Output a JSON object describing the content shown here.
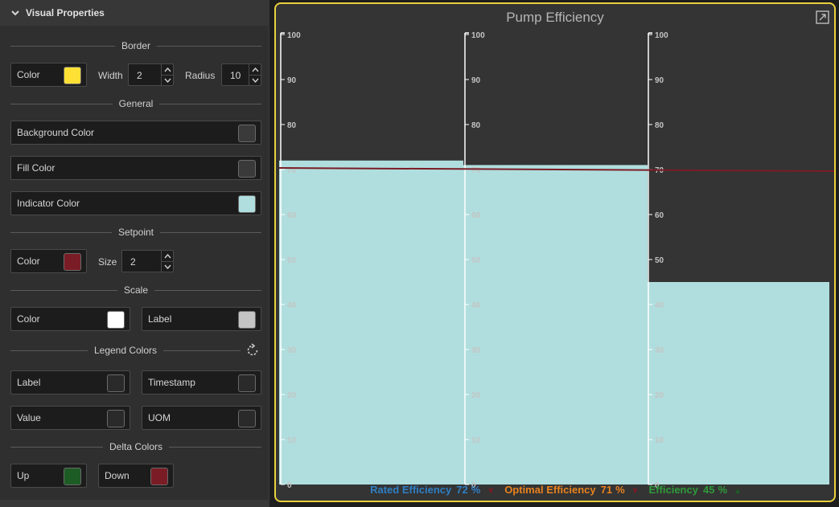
{
  "panel": {
    "header": "Visual Properties",
    "border": {
      "section": "Border",
      "color_label": "Color",
      "color": "#ffe135",
      "width_label": "Width",
      "width_value": "2",
      "radius_label": "Radius",
      "radius_value": "10"
    },
    "general": {
      "section": "General",
      "background_label": "Background Color",
      "background": "#3a3a3a",
      "fill_label": "Fill Color",
      "fill": "#3a3a3a",
      "indicator_label": "Indicator Color",
      "indicator": "#b0dede"
    },
    "setpoint": {
      "section": "Setpoint",
      "color_label": "Color",
      "color": "#7a1c25",
      "size_label": "Size",
      "size_value": "2"
    },
    "scale": {
      "section": "Scale",
      "color_label": "Color",
      "color": "#ffffff",
      "label_label": "Label",
      "label_color": "#c4c4c4"
    },
    "legend_colors": {
      "section": "Legend Colors",
      "label_label": "Label",
      "label_color": "#2a2a2a",
      "timestamp_label": "Timestamp",
      "timestamp_color": "#2a2a2a",
      "value_label": "Value",
      "value_color": "#2a2a2a",
      "uom_label": "UOM",
      "uom_color": "#2a2a2a"
    },
    "delta_colors": {
      "section": "Delta Colors",
      "up_label": "Up",
      "up_color": "#1d5c25",
      "down_label": "Down",
      "down_color": "#7a1c25"
    }
  },
  "chart": {
    "title": "Pump Efficiency"
  },
  "chart_data": {
    "type": "bar",
    "title": "Pump Efficiency",
    "ylim": [
      0,
      100
    ],
    "ticks": [
      0,
      10,
      20,
      30,
      40,
      50,
      60,
      70,
      80,
      90,
      100
    ],
    "tick_labels": [
      "0",
      "10",
      "20",
      "30",
      "40",
      "50",
      "60",
      "70",
      "80",
      "90",
      "100"
    ],
    "setpoint": 70,
    "fill_color": "#b0dede",
    "setpoint_color": "#7a1c25",
    "series": [
      {
        "name": "Rated Efficiency",
        "value": 72,
        "uom": "%",
        "color": "#2f7fc4",
        "delta": "down",
        "delta_color": "#7a1c25"
      },
      {
        "name": "Optimal Efficiency",
        "value": 71,
        "uom": "%",
        "color": "#e8821e",
        "delta": "down",
        "delta_color": "#7a1c25"
      },
      {
        "name": "Efficiency",
        "value": 45,
        "uom": "%",
        "color": "#2f9a3a",
        "delta": "up",
        "delta_color": "#1d5c25"
      }
    ]
  }
}
